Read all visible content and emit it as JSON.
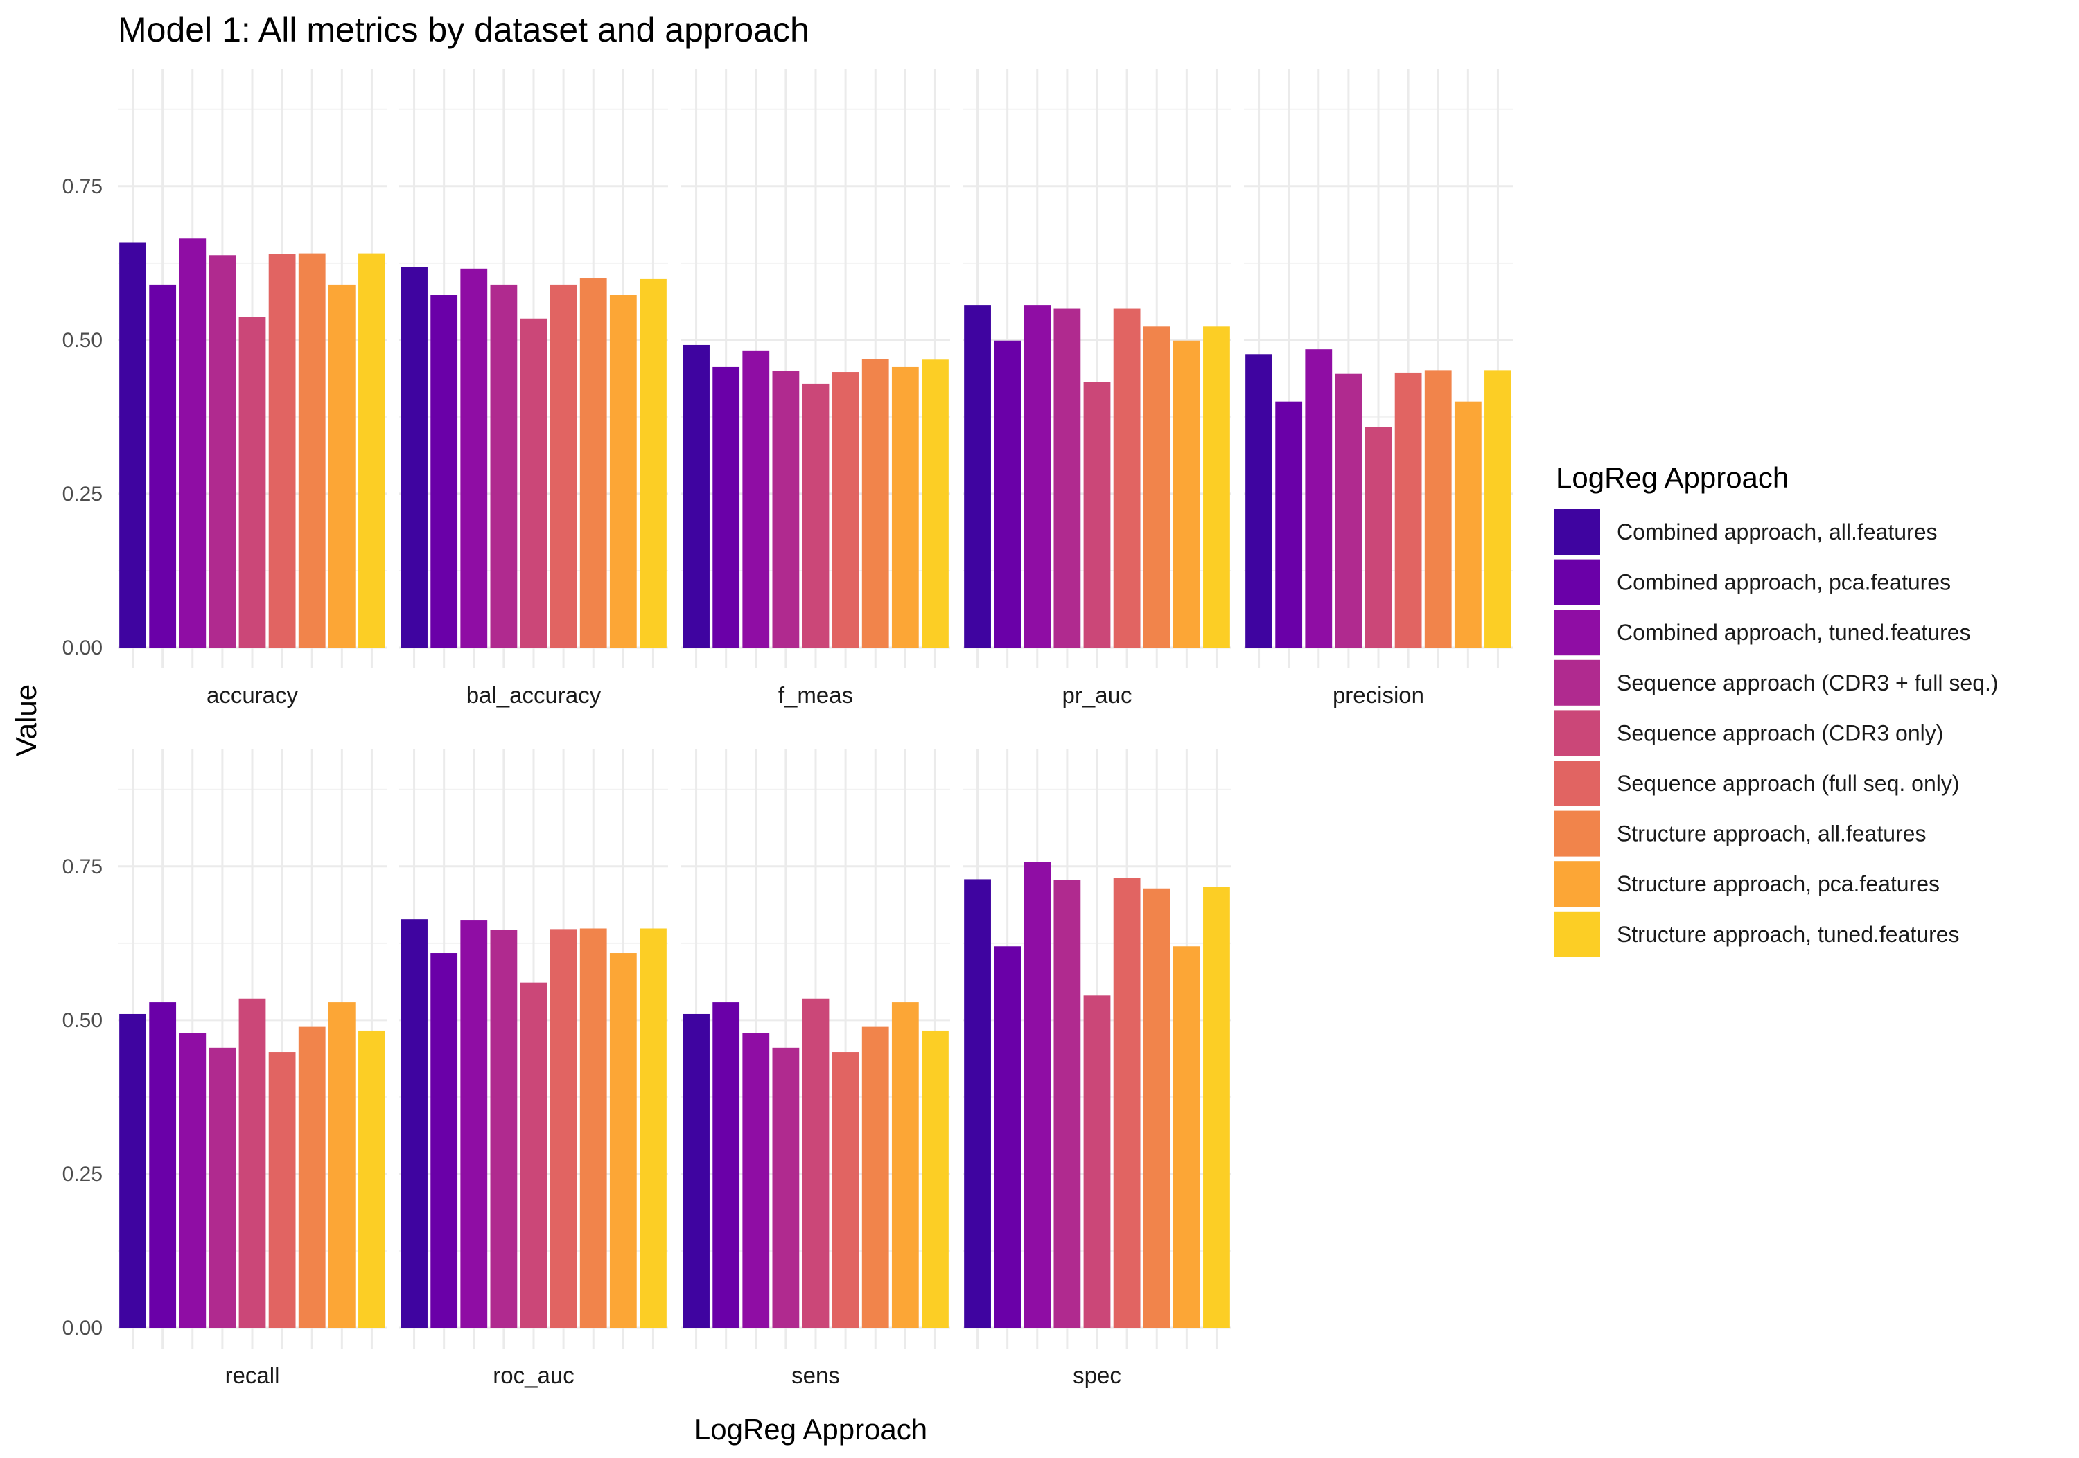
{
  "chart_data": {
    "type": "bar",
    "title": "Model 1: All metrics by dataset and approach",
    "xlabel": "LogReg Approach",
    "ylabel": "Value",
    "ylim": [
      0,
      0.94
    ],
    "y_ticks": [
      "0.00",
      "0.25",
      "0.50",
      "0.75"
    ],
    "grid": true,
    "legend": {
      "title": "LogReg Approach",
      "placement": "right"
    },
    "categories": [
      "Combined approach, all.features",
      "Combined approach, pca.features",
      "Combined approach, tuned.features",
      "Sequence approach (CDR3 + full seq.)",
      "Sequence approach (CDR3 only)",
      "Sequence approach (full seq. only)",
      "Structure approach, all.features",
      "Structure approach, pca.features",
      "Structure approach, tuned.features"
    ],
    "colors": [
      "#3F04A0",
      "#6A00A8",
      "#8F0DA4",
      "#B02A8F",
      "#CB4778",
      "#E16462",
      "#F1844B",
      "#FCA636",
      "#FCCE25"
    ],
    "facets": [
      {
        "name": "accuracy",
        "values": [
          0.658,
          0.59,
          0.665,
          0.638,
          0.537,
          0.64,
          0.641,
          0.59,
          0.641
        ]
      },
      {
        "name": "bal_accuracy",
        "values": [
          0.619,
          0.573,
          0.616,
          0.59,
          0.535,
          0.59,
          0.6,
          0.573,
          0.599
        ]
      },
      {
        "name": "f_meas",
        "values": [
          0.492,
          0.456,
          0.482,
          0.45,
          0.429,
          0.448,
          0.469,
          0.456,
          0.468
        ]
      },
      {
        "name": "pr_auc",
        "values": [
          0.556,
          0.499,
          0.556,
          0.551,
          0.432,
          0.551,
          0.522,
          0.499,
          0.522
        ]
      },
      {
        "name": "precision",
        "values": [
          0.477,
          0.4,
          0.485,
          0.445,
          0.358,
          0.447,
          0.451,
          0.4,
          0.451
        ]
      },
      {
        "name": "recall",
        "values": [
          0.51,
          0.529,
          0.479,
          0.455,
          0.535,
          0.448,
          0.489,
          0.529,
          0.483
        ]
      },
      {
        "name": "roc_auc",
        "values": [
          0.664,
          0.609,
          0.663,
          0.647,
          0.561,
          0.648,
          0.649,
          0.609,
          0.649
        ]
      },
      {
        "name": "sens",
        "values": [
          0.51,
          0.529,
          0.479,
          0.455,
          0.535,
          0.448,
          0.489,
          0.529,
          0.483
        ]
      },
      {
        "name": "spec",
        "values": [
          0.729,
          0.62,
          0.757,
          0.728,
          0.54,
          0.731,
          0.714,
          0.62,
          0.717
        ]
      }
    ]
  }
}
